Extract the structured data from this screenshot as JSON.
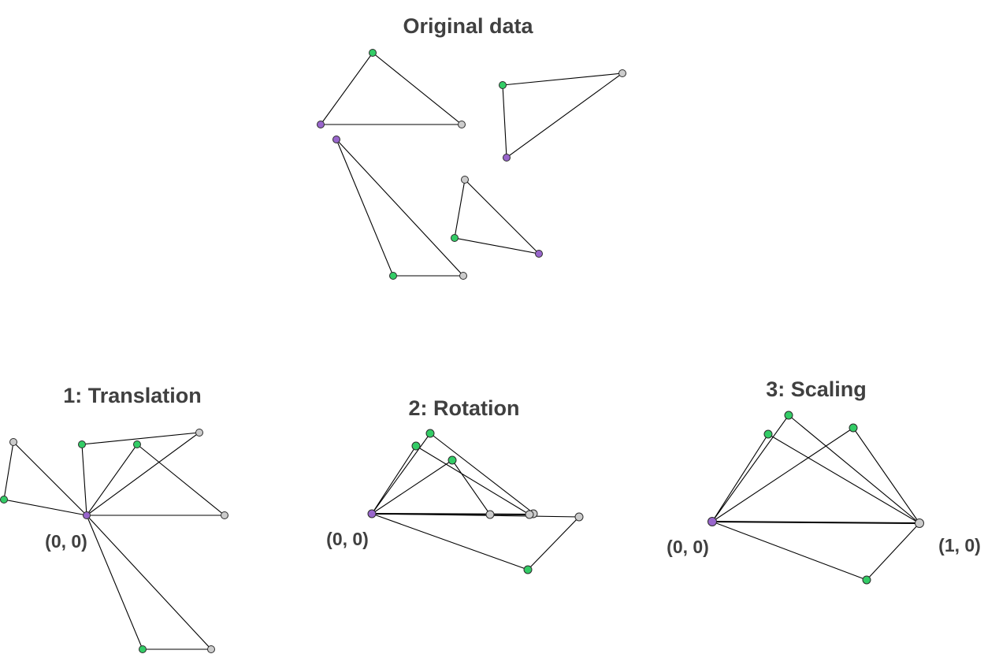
{
  "panels": {
    "original": {
      "title": "Original data"
    },
    "translation": {
      "title": "1: Translation",
      "origin_label": "(0, 0)"
    },
    "rotation": {
      "title": "2: Rotation",
      "origin_label": "(0, 0)"
    },
    "scaling": {
      "title": "3: Scaling",
      "origin_label": "(0, 0)",
      "unit_label": "(1, 0)"
    }
  },
  "colors": {
    "anchor_point": "#9966cc",
    "reference_point": "#cccccc",
    "free_point": "#33cc66",
    "text": "#404040",
    "edge": "#000000"
  }
}
